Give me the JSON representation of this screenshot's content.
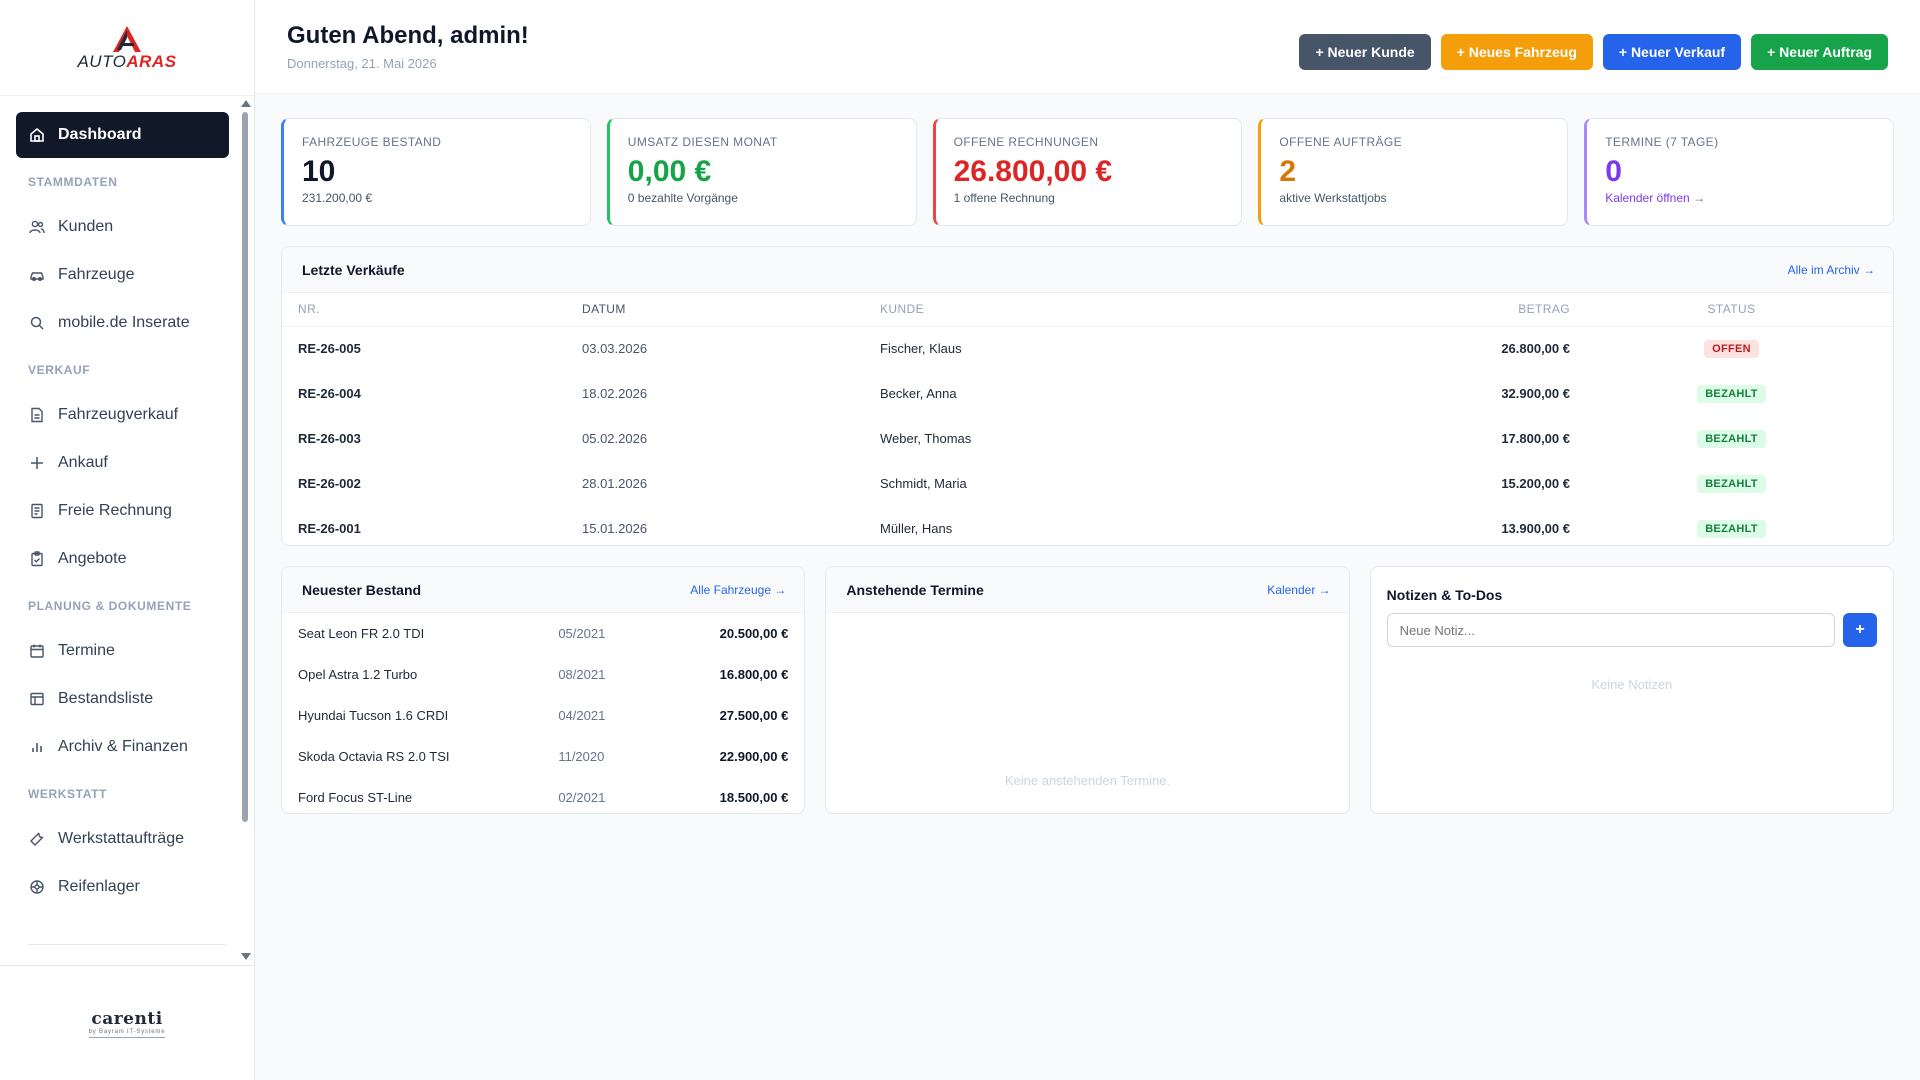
{
  "brand": {
    "logo_part1": "AUTO",
    "logo_part2": "ARAS",
    "footer_name": "carenti",
    "footer_sub": "by Bayram IT-Systeme"
  },
  "sidebar": {
    "dashboard": "Dashboard",
    "sections": {
      "stammdaten": "STAMMDATEN",
      "verkauf": "VERKAUF",
      "planung": "PLANUNG & DOKUMENTE",
      "werkstatt": "WERKSTATT"
    },
    "items": {
      "kunden": "Kunden",
      "fahrzeuge": "Fahrzeuge",
      "mobile": "mobile.de Inserate",
      "fahrzeugverkauf": "Fahrzeugverkauf",
      "ankauf": "Ankauf",
      "freie_rechnung": "Freie Rechnung",
      "angebote": "Angebote",
      "termine": "Termine",
      "bestandsliste": "Bestandsliste",
      "archiv": "Archiv & Finanzen",
      "werkstattauftraege": "Werkstattaufträge",
      "reifenlager": "Reifenlager"
    }
  },
  "header": {
    "greeting": "Guten Abend, admin!",
    "date": "Donnerstag, 21. Mai 2026",
    "buttons": {
      "kunde": "+ Neuer Kunde",
      "fahrzeug": "+ Neues Fahrzeug",
      "verkauf": "+ Neuer Verkauf",
      "auftrag": "+ Neuer Auftrag"
    }
  },
  "stats": [
    {
      "label": "FAHRZEUGE BESTAND",
      "value": "10",
      "sub": "231.200,00 €",
      "color": "#0f172a"
    },
    {
      "label": "UMSATZ DIESEN MONAT",
      "value": "0,00 €",
      "sub": "0 bezahlte Vorgänge",
      "color": "#16a34a"
    },
    {
      "label": "OFFENE RECHNUNGEN",
      "value": "26.800,00 €",
      "sub": "1 offene Rechnung",
      "color": "#dc2626"
    },
    {
      "label": "OFFENE AUFTRÄGE",
      "value": "2",
      "sub": "aktive Werkstattjobs",
      "color": "#d97706"
    },
    {
      "label": "TERMINE (7 TAGE)",
      "value": "0",
      "sub": "Kalender öffnen →",
      "color": "#7c3aed"
    }
  ],
  "sales": {
    "title": "Letzte Verkäufe",
    "link": "Alle im Archiv →",
    "columns": {
      "nr": "NR.",
      "datum": "DATUM",
      "kunde": "KUNDE",
      "betrag": "BETRAG",
      "status": "STATUS"
    },
    "rows": [
      {
        "nr": "RE-26-005",
        "datum": "03.03.2026",
        "kunde": "Fischer, Klaus",
        "betrag": "26.800,00 €",
        "status": "OFFEN"
      },
      {
        "nr": "RE-26-004",
        "datum": "18.02.2026",
        "kunde": "Becker, Anna",
        "betrag": "32.900,00 €",
        "status": "BEZAHLT"
      },
      {
        "nr": "RE-26-003",
        "datum": "05.02.2026",
        "kunde": "Weber, Thomas",
        "betrag": "17.800,00 €",
        "status": "BEZAHLT"
      },
      {
        "nr": "RE-26-002",
        "datum": "28.01.2026",
        "kunde": "Schmidt, Maria",
        "betrag": "15.200,00 €",
        "status": "BEZAHLT"
      },
      {
        "nr": "RE-26-001",
        "datum": "15.01.2026",
        "kunde": "Müller, Hans",
        "betrag": "13.900,00 €",
        "status": "BEZAHLT"
      }
    ]
  },
  "stock": {
    "title": "Neuester Bestand",
    "link": "Alle Fahrzeuge →",
    "rows": [
      {
        "name": "Seat Leon FR 2.0 TDI",
        "date": "05/2021",
        "price": "20.500,00 €"
      },
      {
        "name": "Opel Astra 1.2 Turbo",
        "date": "08/2021",
        "price": "16.800,00 €"
      },
      {
        "name": "Hyundai Tucson 1.6 CRDI",
        "date": "04/2021",
        "price": "27.500,00 €"
      },
      {
        "name": "Skoda Octavia RS 2.0 TSI",
        "date": "11/2020",
        "price": "22.900,00 €"
      },
      {
        "name": "Ford Focus ST-Line",
        "date": "02/2021",
        "price": "18.500,00 €"
      }
    ]
  },
  "appointments": {
    "title": "Anstehende Termine",
    "link": "Kalender →",
    "empty": "Keine anstehenden Termine."
  },
  "notes": {
    "title": "Notizen & To-Dos",
    "placeholder": "Neue Notiz...",
    "add": "+",
    "empty": "Keine Notizen"
  }
}
